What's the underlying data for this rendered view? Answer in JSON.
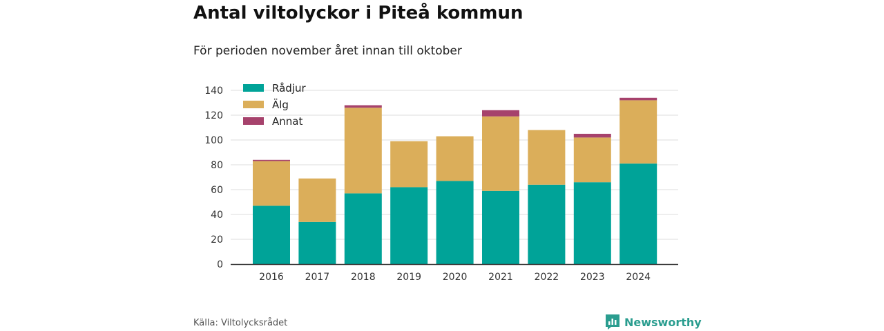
{
  "header": {
    "title": "Antal viltolyckor i Piteå kommun",
    "subtitle": "För perioden november året innan till oktober"
  },
  "footer": {
    "source": "Källa: Viltolycksrådet",
    "brand": "Newsworthy"
  },
  "colors": {
    "radjur": "#00a398",
    "alg": "#dbae5a",
    "annat": "#a6426c",
    "grid": "#dddddd",
    "axis": "#333333",
    "brand": "#2a9d8f"
  },
  "chart_data": {
    "type": "bar",
    "stacked": true,
    "categories": [
      "2016",
      "2017",
      "2018",
      "2019",
      "2020",
      "2021",
      "2022",
      "2023",
      "2024"
    ],
    "series": [
      {
        "name": "Rådjur",
        "values": [
          47,
          34,
          57,
          62,
          67,
          59,
          64,
          66,
          81
        ]
      },
      {
        "name": "Älg",
        "values": [
          36,
          35,
          69,
          37,
          36,
          60,
          44,
          36,
          51
        ]
      },
      {
        "name": "Annat",
        "values": [
          1,
          0,
          2,
          0,
          0,
          5,
          0,
          3,
          2
        ]
      }
    ],
    "ylim": [
      0,
      140
    ],
    "yticks": [
      0,
      20,
      40,
      60,
      80,
      100,
      120,
      140
    ],
    "grid": true,
    "legend": "top-left"
  }
}
